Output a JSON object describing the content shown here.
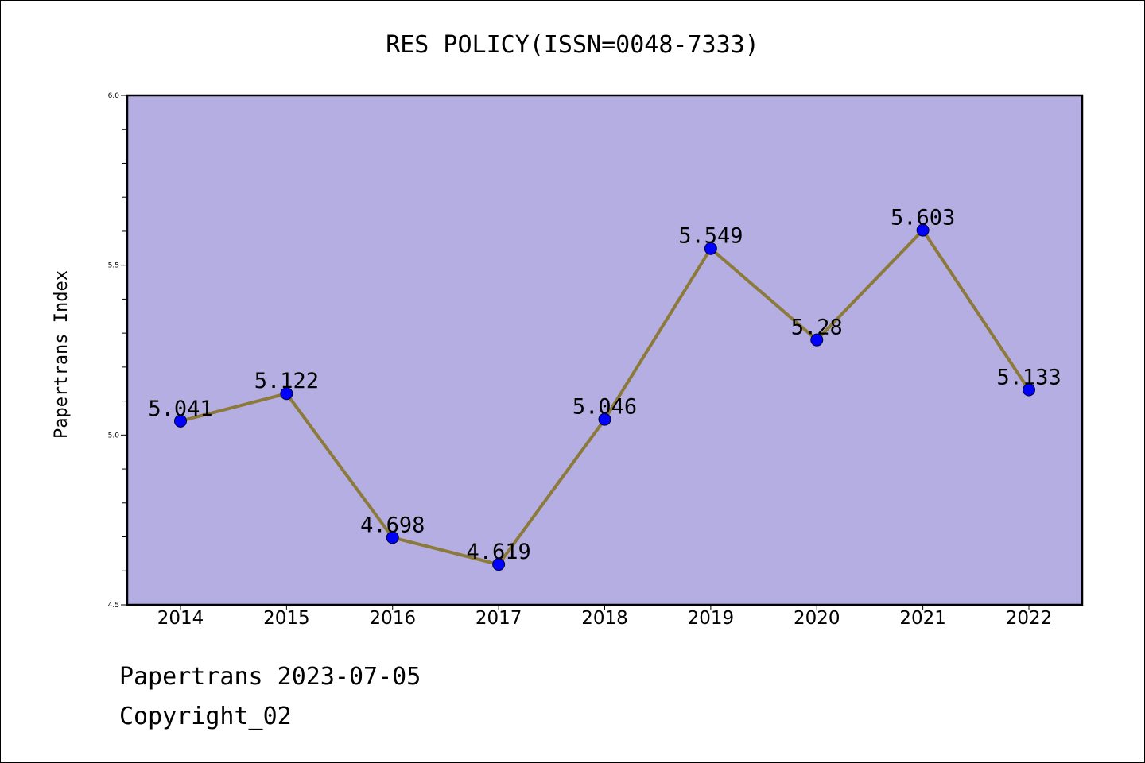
{
  "chart_data": {
    "type": "line",
    "title": "RES POLICY(ISSN=0048-7333)",
    "xlabel": "",
    "ylabel": "Papertrans Index",
    "categories": [
      "2014",
      "2015",
      "2016",
      "2017",
      "2018",
      "2019",
      "2020",
      "2021",
      "2022"
    ],
    "values": [
      5.041,
      5.122,
      4.698,
      4.619,
      5.046,
      5.549,
      5.28,
      5.603,
      5.133
    ],
    "data_labels": [
      "5.041",
      "5.122",
      "4.698",
      "4.619",
      "5.046",
      "5.549",
      "5.28",
      "5.603",
      "5.133"
    ],
    "ylim": [
      4.5,
      6.0
    ],
    "yticks": [
      "4.5",
      "5.0",
      "5.5",
      "6.0"
    ],
    "y_minor_step": 0.1,
    "grid": false,
    "legend": "none",
    "colors": {
      "plot_background": "#b5aee2",
      "line": "#8b7a3a",
      "marker": "#0000ff",
      "axes": "#000000"
    }
  },
  "footer": {
    "line1": "Papertrans 2023-07-05",
    "line2": "Copyright_02"
  }
}
